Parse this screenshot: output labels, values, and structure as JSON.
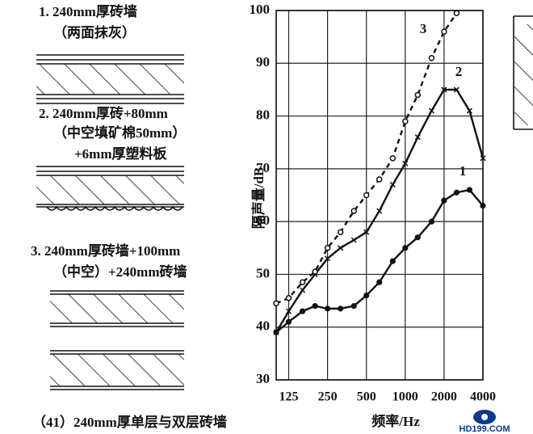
{
  "labels": {
    "wall_1": [
      "1. 240mm厚砖墙",
      "（两面抹灰）"
    ],
    "wall_2": [
      "2. 240mm厚砖+80mm",
      "（中空填矿棉50mm）",
      "+6mm厚塑料板"
    ],
    "wall_3": [
      "3. 240mm厚砖墙+100mm",
      "（中空）+240mm砖墙"
    ],
    "caption": "（41）240mm厚单层与双层砖墙",
    "logo": "HD199.COM"
  },
  "chart_data": {
    "type": "line",
    "x_label": "频率/Hz",
    "y_label": "隔声量/dB",
    "x": [
      100,
      125,
      160,
      200,
      250,
      315,
      400,
      500,
      630,
      800,
      1000,
      1250,
      1600,
      2000,
      2500,
      3150,
      4000
    ],
    "xlim": [
      100,
      4000
    ],
    "xticks": [
      125,
      250,
      500,
      1000,
      2000,
      4000
    ],
    "x_log": true,
    "ylim": [
      30,
      100
    ],
    "yticks": [
      30,
      40,
      50,
      60,
      70,
      80,
      90,
      100
    ],
    "grid": true,
    "series": [
      {
        "name": "1",
        "color": "#111111",
        "marker": "dot",
        "dashed": false,
        "values": [
          39,
          41,
          43,
          44,
          43.5,
          43.5,
          44,
          46,
          48.5,
          52.5,
          55,
          57,
          60,
          64,
          65.5,
          66,
          63
        ]
      },
      {
        "name": "2",
        "color": "#111111",
        "marker": "cross",
        "dashed": false,
        "values": [
          39,
          43,
          47,
          50,
          53,
          55,
          56.5,
          58,
          62,
          67,
          71,
          76,
          81,
          85,
          85,
          81,
          72
        ]
      },
      {
        "name": "3",
        "color": "#111111",
        "marker": "circle",
        "dashed": true,
        "values": [
          44.5,
          45.5,
          48.5,
          50.5,
          55,
          58,
          62,
          65,
          68,
          72,
          79,
          84,
          91,
          96,
          99.5,
          null,
          null
        ]
      }
    ]
  }
}
